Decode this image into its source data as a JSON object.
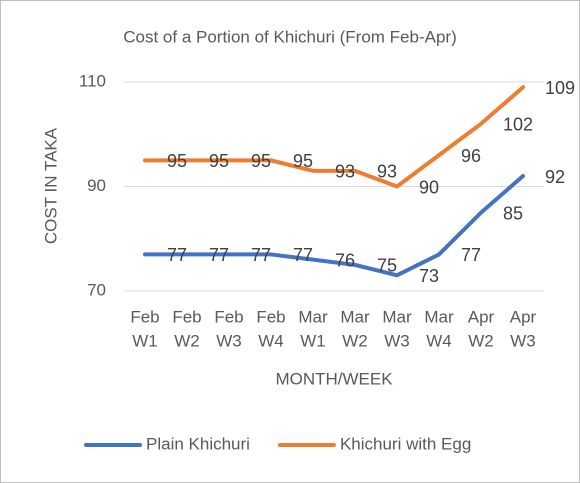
{
  "chart_data": {
    "type": "line",
    "title": "Cost of a Portion of Khichuri (From Feb-Apr)",
    "x_label": "MONTH/WEEK",
    "y_label": "COST IN TAKA",
    "categories": [
      [
        "Feb",
        "W1"
      ],
      [
        "Feb",
        "W2"
      ],
      [
        "Feb",
        "W3"
      ],
      [
        "Feb",
        "W4"
      ],
      [
        "Mar",
        "W1"
      ],
      [
        "Mar",
        "W2"
      ],
      [
        "Mar",
        "W3"
      ],
      [
        "Mar",
        "W4"
      ],
      [
        "Apr",
        "W2"
      ],
      [
        "Apr",
        "W3"
      ]
    ],
    "series": [
      {
        "name": "Plain Khichuri",
        "color": "#4472c4",
        "values": [
          77,
          77,
          77,
          77,
          76,
          75,
          73,
          77,
          85,
          92
        ]
      },
      {
        "name": "Khichuri with Egg",
        "color": "#ed7d31",
        "values": [
          95,
          95,
          95,
          95,
          93,
          93,
          90,
          96,
          102,
          109
        ]
      }
    ],
    "ylim": [
      70,
      110
    ],
    "yticks": [
      70,
      90,
      110
    ],
    "grid": true,
    "legend": "bottom"
  }
}
